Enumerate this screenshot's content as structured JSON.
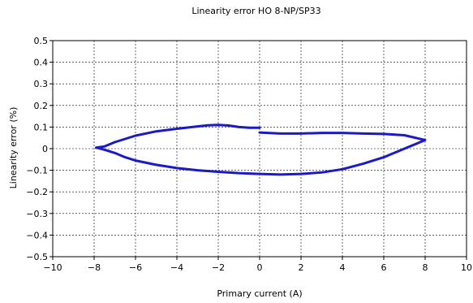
{
  "chart_data": {
    "type": "line",
    "title": "Linearity error HO 8-NP/SP33",
    "xlabel": "Primary current (A)",
    "ylabel": "Linearity error (%)",
    "xlim": [
      -10,
      10
    ],
    "ylim": [
      -0.5,
      0.5
    ],
    "x_ticks": [
      -10,
      -8,
      -6,
      -4,
      -2,
      0,
      2,
      4,
      6,
      8,
      10
    ],
    "y_ticks": [
      -0.5,
      -0.4,
      -0.3,
      -0.2,
      -0.1,
      0,
      0.1,
      0.2,
      0.3,
      0.4,
      0.5
    ],
    "x_tick_labels": [
      "−10",
      "−8",
      "−6",
      "−4",
      "−2",
      "0",
      "2",
      "4",
      "6",
      "8",
      "10"
    ],
    "y_tick_labels": [
      "−0.5",
      "−0.4",
      "−0.3",
      "−0.2",
      "−0.1",
      "0",
      "0.1",
      "0.2",
      "0.3",
      "0.4",
      "0.5"
    ],
    "grid": true,
    "legend": "none",
    "series": [
      {
        "color": "#1a1acc",
        "points": [
          [
            0.0,
            0.075
          ],
          [
            1.0,
            0.07
          ],
          [
            2.0,
            0.07
          ],
          [
            3.0,
            0.073
          ],
          [
            4.0,
            0.073
          ],
          [
            5.0,
            0.07
          ],
          [
            6.0,
            0.068
          ],
          [
            7.0,
            0.062
          ],
          [
            8.0,
            0.04
          ],
          [
            7.5,
            0.02
          ],
          [
            7.0,
            0.0
          ],
          [
            6.5,
            -0.02
          ],
          [
            6.0,
            -0.04
          ],
          [
            5.0,
            -0.07
          ],
          [
            4.0,
            -0.095
          ],
          [
            3.0,
            -0.11
          ],
          [
            2.0,
            -0.117
          ],
          [
            1.0,
            -0.12
          ],
          [
            0.0,
            -0.117
          ],
          [
            -1.0,
            -0.113
          ],
          [
            -2.0,
            -0.107
          ],
          [
            -3.0,
            -0.1
          ],
          [
            -4.0,
            -0.09
          ],
          [
            -5.0,
            -0.075
          ],
          [
            -6.0,
            -0.055
          ],
          [
            -6.5,
            -0.04
          ],
          [
            -7.0,
            -0.02
          ],
          [
            -7.5,
            -0.005
          ],
          [
            -7.9,
            0.005
          ],
          [
            -7.5,
            0.01
          ],
          [
            -7.0,
            0.03
          ],
          [
            -6.5,
            0.045
          ],
          [
            -6.0,
            0.06
          ],
          [
            -5.0,
            0.08
          ],
          [
            -4.0,
            0.092
          ],
          [
            -3.0,
            0.103
          ],
          [
            -2.5,
            0.108
          ],
          [
            -2.0,
            0.11
          ],
          [
            -1.5,
            0.107
          ],
          [
            -1.0,
            0.1
          ],
          [
            -0.5,
            0.097
          ],
          [
            0.0,
            0.097
          ]
        ]
      }
    ]
  }
}
